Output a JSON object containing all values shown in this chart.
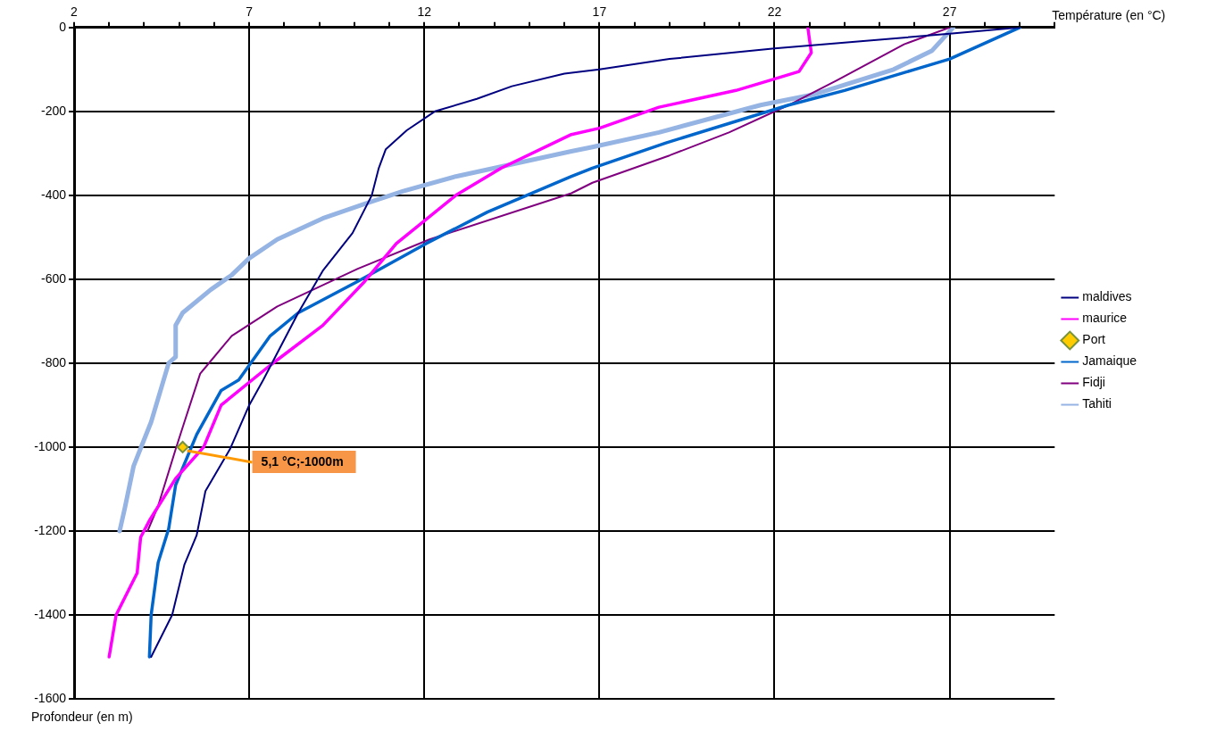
{
  "chart_data": {
    "type": "line",
    "xlabel": "Température (en °C)",
    "ylabel": "Profondeur (en m)",
    "xlim": [
      2,
      30
    ],
    "xticks": [
      2,
      {
        "value": 3,
        "label": null
      },
      {
        "value": 4,
        "label": null
      },
      {
        "value": 5,
        "label": null
      },
      {
        "value": 6,
        "label": null
      },
      7,
      {
        "value": 8,
        "label": null
      },
      {
        "value": 9,
        "label": null
      },
      {
        "value": 10,
        "label": null
      },
      {
        "value": 11,
        "label": null
      },
      12,
      {
        "value": 13,
        "label": null
      },
      {
        "value": 14,
        "label": null
      },
      {
        "value": 15,
        "label": null
      },
      {
        "value": 16,
        "label": null
      },
      17,
      {
        "value": 18,
        "label": null
      },
      {
        "value": 19,
        "label": null
      },
      {
        "value": 20,
        "label": null
      },
      {
        "value": 21,
        "label": null
      },
      22,
      {
        "value": 23,
        "label": null
      },
      {
        "value": 24,
        "label": null
      },
      {
        "value": 25,
        "label": null
      },
      {
        "value": 26,
        "label": null
      },
      27,
      {
        "value": 28,
        "label": null
      },
      {
        "value": 29,
        "label": null
      },
      {
        "value": 30,
        "label": null
      }
    ],
    "ylim": [
      -1600,
      0
    ],
    "yticks": [
      0,
      -200,
      -400,
      -600,
      -800,
      -1000,
      -1200,
      -1400,
      -1600
    ],
    "grid": true,
    "legend": "right",
    "series": [
      {
        "name": "maldives",
        "color": "#000080",
        "x": [
          29,
          27,
          22,
          19,
          17,
          16,
          14.5,
          13.5,
          12.3,
          11.5,
          10.9,
          10.7,
          10.5,
          9.95,
          9.1,
          8.4,
          7.4,
          7,
          6.45,
          5.75,
          5.5,
          5.15,
          4.8,
          4.2
        ],
        "values": [
          0,
          -15,
          -50,
          -75,
          -100,
          -110,
          -140,
          -170,
          -200,
          -245,
          -290,
          -335,
          -400,
          -490,
          -580,
          -680,
          -840,
          -900,
          -1005,
          -1105,
          -1210,
          -1280,
          -1400,
          -1500
        ]
      },
      {
        "name": "maurice",
        "color": "#ff00ff",
        "x": [
          22.95,
          23.05,
          22.7,
          21.9,
          20.9,
          18.7,
          17,
          16.2,
          14.2,
          12.9,
          11.2,
          10.3,
          9.1,
          7.6,
          6.2,
          5.7,
          4.9,
          4.15,
          3.9,
          3.8,
          3.2,
          3
        ],
        "values": [
          0,
          -60,
          -105,
          -125,
          -150,
          -190,
          -240,
          -255,
          -335,
          -400,
          -515,
          -605,
          -710,
          -805,
          -900,
          -1000,
          -1075,
          -1175,
          -1215,
          -1300,
          -1400,
          -1500
        ]
      },
      {
        "name": "Port",
        "color": "#ffcc00",
        "marker": "diamond",
        "x": [
          5.1
        ],
        "values": [
          -1000
        ]
      },
      {
        "name": "Jamaique",
        "color": "#0066cc",
        "x": [
          29,
          27,
          26,
          24,
          22.4,
          18.9,
          16.8,
          16.2,
          13.8,
          12.05,
          10.1,
          8.4,
          7.6,
          6.7,
          6.2,
          5.5,
          4.9,
          4.7,
          4.4,
          4.2,
          4.15
        ],
        "values": [
          0,
          -75,
          -100,
          -150,
          -185,
          -275,
          -335,
          -355,
          -440,
          -515,
          -605,
          -680,
          -735,
          -840,
          -865,
          -970,
          -1090,
          -1195,
          -1275,
          -1400,
          -1500
        ]
      },
      {
        "name": "Fidji",
        "color": "#800080",
        "x": [
          27,
          25.7,
          23.8,
          22.4,
          20.7,
          19,
          16.8,
          16.2,
          12.15,
          10.1,
          7.8,
          6.5,
          5.8,
          5.6,
          5.15,
          4.9,
          4.4,
          4.1
        ],
        "values": [
          0,
          -40,
          -125,
          -185,
          -250,
          -305,
          -370,
          -395,
          -505,
          -575,
          -665,
          -735,
          -805,
          -825,
          -940,
          -1005,
          -1140,
          -1200
        ]
      },
      {
        "name": "Tahiti",
        "color": "#95b3e3",
        "x": [
          27.1,
          26.5,
          25.4,
          23.1,
          21.6,
          18.7,
          16.8,
          16.2,
          12.9,
          11.4,
          10.3,
          9.1,
          7.8,
          7,
          6.5,
          5.9,
          5.1,
          4.9,
          4.9,
          4.7,
          4.2,
          3.7,
          3.45,
          3.3
        ],
        "values": [
          0,
          -55,
          -100,
          -160,
          -185,
          -250,
          -285,
          -295,
          -355,
          -390,
          -420,
          -455,
          -505,
          -550,
          -590,
          -625,
          -680,
          -710,
          -785,
          -800,
          -940,
          -1045,
          -1145,
          -1200
        ]
      }
    ],
    "annotations": [
      {
        "text": "5,1 °C;-1000m",
        "x": 5.1,
        "y": -1000
      }
    ]
  }
}
